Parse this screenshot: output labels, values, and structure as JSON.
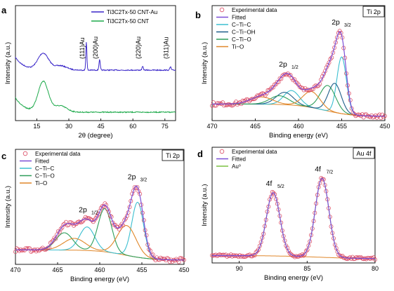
{
  "colors": {
    "exp_marker": "#d9455f",
    "fitted": "#7b4fd6",
    "ti_c": "#3bbfd0",
    "ti_oh": "#1f5f8a",
    "c_ti_o": "#2e9e5a",
    "ti_o": "#e0872a",
    "au0": "#7cc242",
    "xrd_top": "#3a27c9",
    "xrd_bottom": "#1faa4c"
  },
  "chart_data": [
    {
      "id": "a",
      "type": "line",
      "panel_label": "a",
      "xlabel": "2θ (degree)",
      "ylabel": "Intensity (a.u.)",
      "xlim": [
        5,
        80
      ],
      "xticks": [
        "15",
        "30",
        "45",
        "60",
        "75"
      ],
      "xtick_values": [
        15,
        30,
        45,
        60,
        75
      ],
      "legend": [
        {
          "label": "Ti3C2Tx-50 CNT-Au",
          "color": "#3a27c9"
        },
        {
          "label": "Ti3C2Tx-50 CNT",
          "color": "#1faa4c"
        }
      ],
      "annotations": [
        {
          "text": "(111)Au",
          "x": 38.2
        },
        {
          "text": "(200)Au",
          "x": 44.4
        },
        {
          "text": "(220)Au",
          "x": 64.6
        },
        {
          "text": "(311)Au",
          "x": 77.6
        }
      ],
      "series": [
        {
          "name": "Ti3C2Tx-50 CNT-Au",
          "color": "#3a27c9",
          "peaks": [
            [
              18,
              0.45,
              2.5
            ],
            [
              26,
              0.12,
              3
            ],
            [
              38.2,
              0.78,
              0.25
            ],
            [
              44.4,
              0.28,
              0.3
            ],
            [
              64.6,
              0.1,
              0.3
            ],
            [
              77.6,
              0.09,
              0.3
            ]
          ],
          "baseline": 0.0
        },
        {
          "name": "Ti3C2Tx-50 CNT",
          "color": "#1faa4c",
          "peaks": [
            [
              18,
              0.72,
              2.4
            ],
            [
              26,
              0.15,
              3
            ]
          ],
          "baseline": 0.0
        }
      ]
    },
    {
      "id": "b",
      "type": "line",
      "panel_label": "b",
      "badge": "Ti 2p",
      "xlabel": "Binding energy (eV)",
      "ylabel": "Intensity (a.u.)",
      "xlim": [
        470,
        450
      ],
      "xticks": [
        "470",
        "465",
        "460",
        "455",
        "450"
      ],
      "xtick_values": [
        470,
        465,
        460,
        455,
        450
      ],
      "peak_labels": [
        {
          "main": "2p",
          "sub": "1/2",
          "x": 461.3
        },
        {
          "main": "2p",
          "sub": "3/2",
          "x": 455.2
        }
      ],
      "legend": [
        {
          "label": "Experimental data",
          "kind": "marker",
          "color": "#d9455f"
        },
        {
          "label": "Fitted",
          "kind": "line",
          "color": "#7b4fd6"
        },
        {
          "label": "C−Ti−C",
          "kind": "line",
          "color": "#3bbfd0"
        },
        {
          "label": "C−Ti−OH",
          "kind": "line",
          "color": "#1f5f8a"
        },
        {
          "label": "C−Ti−O",
          "kind": "line",
          "color": "#2e9e5a"
        },
        {
          "label": "Ti−O",
          "kind": "line",
          "color": "#e0872a"
        }
      ],
      "baseline": {
        "left": 0.17,
        "right": 0.0
      },
      "components": [
        {
          "name": "C−Ti−C",
          "color": "#3bbfd0",
          "peaks": [
            [
              455.0,
              0.78,
              0.55
            ],
            [
              460.8,
              0.2,
              0.9
            ]
          ]
        },
        {
          "name": "C−Ti−OH",
          "color": "#1f5f8a",
          "peaks": [
            [
              455.8,
              0.4,
              0.75
            ],
            [
              461.6,
              0.17,
              1.0
            ]
          ]
        },
        {
          "name": "C−Ti−O",
          "color": "#2e9e5a",
          "peaks": [
            [
              456.6,
              0.35,
              0.9
            ],
            [
              462.2,
              0.12,
              1.1
            ]
          ]
        },
        {
          "name": "Ti−O",
          "color": "#e0872a",
          "peaks": [
            [
              458.5,
              0.22,
              1.0
            ],
            [
              464.3,
              0.1,
              1.3
            ]
          ]
        }
      ],
      "ymax": 1.35
    },
    {
      "id": "c",
      "type": "line",
      "panel_label": "c",
      "badge": "Ti 2p",
      "xlabel": "Binding energy (eV)",
      "ylabel": "Intensity (a.u.)",
      "xlim": [
        470,
        450
      ],
      "xticks": [
        "470",
        "465",
        "460",
        "455",
        "450"
      ],
      "xtick_values": [
        470,
        465,
        460,
        455,
        450
      ],
      "peak_labels": [
        {
          "main": "2p",
          "sub": "1/2",
          "x": 461.5
        },
        {
          "main": "2p",
          "sub": "3/2",
          "x": 455.7
        }
      ],
      "legend": [
        {
          "label": "Experimental data",
          "kind": "marker",
          "color": "#d9455f"
        },
        {
          "label": "Fitted",
          "kind": "line",
          "color": "#7b4fd6"
        },
        {
          "label": "C−Ti−C",
          "kind": "line",
          "color": "#3bbfd0"
        },
        {
          "label": "C−Ti−O",
          "kind": "line",
          "color": "#2e9e5a"
        },
        {
          "label": "Ti−O",
          "kind": "line",
          "color": "#e0872a"
        }
      ],
      "baseline": {
        "left": 0.13,
        "right": 0.0
      },
      "components": [
        {
          "name": "C−Ti−C",
          "color": "#3bbfd0",
          "peaks": [
            [
              455.5,
              0.7,
              0.7
            ],
            [
              461.5,
              0.3,
              0.9
            ]
          ]
        },
        {
          "name": "C−Ti−O",
          "color": "#2e9e5a",
          "peaks": [
            [
              459.4,
              0.55,
              0.8
            ],
            [
              464.2,
              0.22,
              1.0
            ]
          ]
        },
        {
          "name": "Ti−O",
          "color": "#e0872a",
          "peaks": [
            [
              456.8,
              0.38,
              1.1
            ],
            [
              463.0,
              0.15,
              1.3
            ]
          ]
        }
      ],
      "ymax": 1.25
    },
    {
      "id": "d",
      "type": "line",
      "panel_label": "d",
      "badge": "Au 4f",
      "xlabel": "Binding energy (eV)",
      "ylabel": "Intensity (a.u.)",
      "xlim": [
        92,
        80
      ],
      "xticks": [
        "90",
        "85",
        "80"
      ],
      "xtick_values": [
        90,
        85,
        80
      ],
      "peak_labels": [
        {
          "main": "4f",
          "sub": "5/2",
          "x": 87.5
        },
        {
          "main": "4f",
          "sub": "7/2",
          "x": 83.9
        }
      ],
      "legend": [
        {
          "label": "Experimental data",
          "kind": "marker",
          "color": "#d9455f"
        },
        {
          "label": "Fitted",
          "kind": "line",
          "color": "#7b4fd6"
        },
        {
          "label": "Au⁰",
          "kind": "line",
          "color": "#7cc242"
        }
      ],
      "baseline": {
        "left": 0.04,
        "right": 0.0
      },
      "components": [
        {
          "name": "Au⁰",
          "color": "#7cc242",
          "peaks": [
            [
              87.5,
              0.8,
              0.5
            ],
            [
              83.9,
              1.0,
              0.5
            ]
          ]
        }
      ],
      "ymax": 1.25
    }
  ]
}
